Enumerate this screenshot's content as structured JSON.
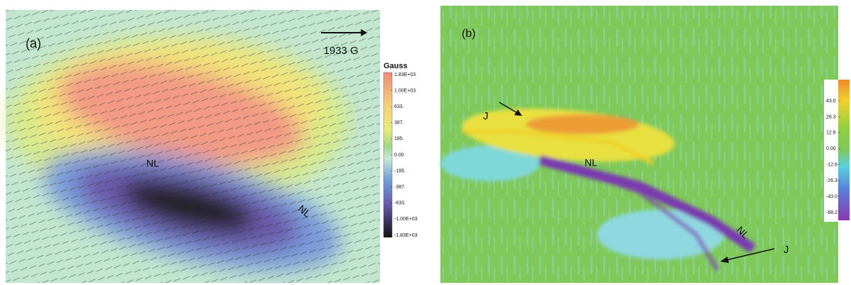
{
  "panel_a": {
    "label": "(a)",
    "scale_label": "1933 G",
    "annotations": [
      "NL",
      "NL"
    ],
    "colorbar": {
      "title": "Gauss",
      "ticks": [
        "1.83E+03",
        "1.00E+03",
        "633.",
        "387.",
        "185.",
        "0.00",
        "-185.",
        "-387.",
        "-633.",
        "-1.00E+03",
        "-1.83E+03"
      ]
    }
  },
  "panel_b": {
    "label": "(b)",
    "annotations": [
      "J",
      "NL",
      "NL",
      "J"
    ],
    "colorbar": {
      "ticks": [
        "43.0",
        "26.3",
        "12.6",
        "0.00",
        "-12.6",
        "-26.3",
        "-43.0",
        "-68.2"
      ]
    }
  }
}
